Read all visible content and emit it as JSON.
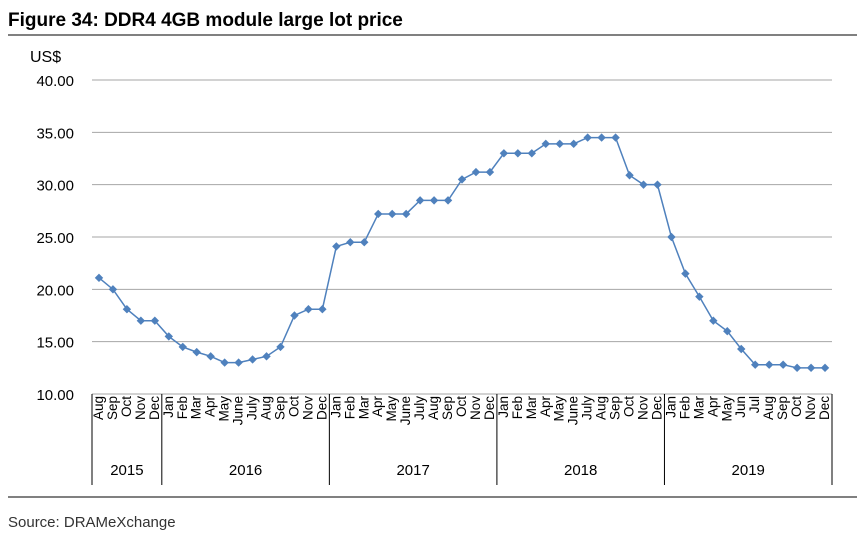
{
  "chart_data": {
    "type": "line",
    "title": "Figure 34: DDR4 4GB module large lot price",
    "y_label": "US$",
    "source": "Source: DRAMeXchange",
    "categories": [
      "Aug",
      "Sep",
      "Oct",
      "Nov",
      "Dec",
      "Jan",
      "Feb",
      "Mar",
      "Apr",
      "May",
      "June",
      "July",
      "Aug",
      "Sep",
      "Oct",
      "Nov",
      "Dec",
      "Jan",
      "Feb",
      "Mar",
      "Apr",
      "May",
      "June",
      "July",
      "Aug",
      "Sep",
      "Oct",
      "Nov",
      "Dec",
      "Jan",
      "Feb",
      "Mar",
      "Apr",
      "May",
      "June",
      "July",
      "Aug",
      "Sep",
      "Oct",
      "Nov",
      "Dec",
      "Jan",
      "Feb",
      "Mar",
      "Apr",
      "May",
      "Jun",
      "Jul",
      "Aug",
      "Sep",
      "Oct",
      "Nov",
      "Dec"
    ],
    "groups": [
      {
        "label": "2015",
        "span": 5
      },
      {
        "label": "2016",
        "span": 12
      },
      {
        "label": "2017",
        "span": 12
      },
      {
        "label": "2018",
        "span": 12
      },
      {
        "label": "2019",
        "span": 12
      }
    ],
    "series": [
      {
        "name": "DDR4 4GB module",
        "color": "#4f81bd",
        "values": [
          21.1,
          20.0,
          18.1,
          17.0,
          17.0,
          15.5,
          14.5,
          14.0,
          13.6,
          13.0,
          13.0,
          13.3,
          13.6,
          14.5,
          17.5,
          18.1,
          18.1,
          24.1,
          24.5,
          24.5,
          27.2,
          27.2,
          27.2,
          28.5,
          28.5,
          28.5,
          30.5,
          31.2,
          31.2,
          33.0,
          33.0,
          33.0,
          33.9,
          33.9,
          33.9,
          34.5,
          34.5,
          34.5,
          30.9,
          30.0,
          30.0,
          25.0,
          21.5,
          19.3,
          17.0,
          16.0,
          14.3,
          12.8,
          12.8,
          12.8,
          12.5,
          12.5,
          12.5
        ]
      }
    ],
    "ylim": [
      10,
      40
    ],
    "yticks": [
      {
        "value": 10,
        "label": "10.00"
      },
      {
        "value": 15,
        "label": "15.00"
      },
      {
        "value": 20,
        "label": "20.00"
      },
      {
        "value": 25,
        "label": "25.00"
      },
      {
        "value": 30,
        "label": "30.00"
      },
      {
        "value": 35,
        "label": "35.00"
      },
      {
        "value": 40,
        "label": "40.00"
      }
    ],
    "grid": true
  }
}
